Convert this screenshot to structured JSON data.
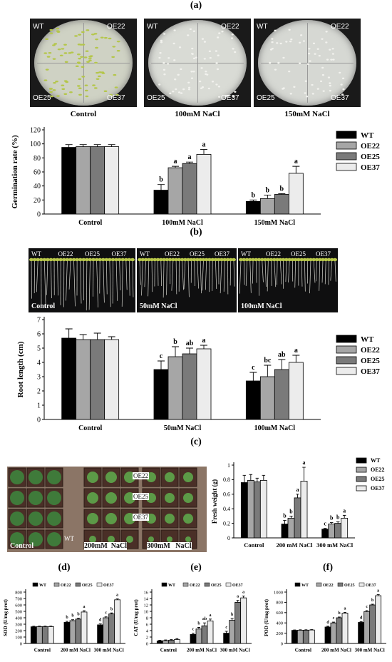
{
  "panels": {
    "a": "(a)",
    "b": "(b)",
    "c": "(c)",
    "d": "(d)",
    "e": "(e)",
    "f": "(f)"
  },
  "plates": [
    {
      "condition": "Control",
      "labels": [
        "WT",
        "OE22",
        "OE25",
        "OE37"
      ],
      "color": "#cfd2c4"
    },
    {
      "condition": "100mM NaCl",
      "labels": [
        "WT",
        "OE22",
        "OE25",
        "OE37"
      ],
      "color": "#d9dbd5"
    },
    {
      "condition": "150mM NaCl",
      "labels": [
        "WT",
        "OE22",
        "OE25",
        "OE37"
      ],
      "color": "#d6d8d3"
    }
  ],
  "root_photos": [
    {
      "condition": "Control",
      "labels": [
        "WT",
        "OE22",
        "OE25",
        "OE37"
      ]
    },
    {
      "condition": "50mM NaCl",
      "labels": [
        "WT",
        "OE22",
        "OE25",
        "OE37"
      ]
    },
    {
      "condition": "100mM NaCl",
      "labels": [
        "WT",
        "OE22",
        "OE25",
        "OE37"
      ]
    }
  ],
  "rosette_photo": {
    "row_labels": [
      "OE22",
      "OE25",
      "OE37",
      "WT"
    ],
    "conditions": [
      "Control",
      "200mM  NaCl",
      "300mM   NaCl"
    ]
  },
  "colors": {
    "WT": "#000000",
    "OE22": "#a6a6a6",
    "OE25": "#7a7a7a",
    "OE37": "#ececec"
  },
  "chart_data": [
    {
      "id": "germination",
      "type": "bar",
      "ylabel": "Germination rate (%)",
      "ylim": [
        0,
        120
      ],
      "yticks": [
        0,
        20,
        40,
        60,
        80,
        100,
        120
      ],
      "categories": [
        "Control",
        "100mM NaCl",
        "150mM NaCl"
      ],
      "series": [
        {
          "name": "WT",
          "values": [
            95,
            34,
            18
          ],
          "errors": [
            4,
            8,
            2
          ],
          "letters": [
            "",
            "b",
            "b"
          ]
        },
        {
          "name": "OE22",
          "values": [
            96,
            66,
            22
          ],
          "errors": [
            3,
            2,
            5
          ],
          "letters": [
            "",
            "a",
            "b"
          ]
        },
        {
          "name": "OE25",
          "values": [
            96,
            72,
            28
          ],
          "errors": [
            3,
            2,
            1
          ],
          "letters": [
            "",
            "a",
            "b"
          ]
        },
        {
          "name": "OE37",
          "values": [
            96,
            85,
            58
          ],
          "errors": [
            3,
            7,
            10
          ],
          "letters": [
            "",
            "a",
            "a"
          ]
        }
      ]
    },
    {
      "id": "rootlength",
      "type": "bar",
      "ylabel": "Root length (cm)",
      "ylim": [
        0,
        7
      ],
      "yticks": [
        0,
        1,
        2,
        3,
        4,
        5,
        6,
        7
      ],
      "categories": [
        "Control",
        "50mM NaCl",
        "100mM NaCl"
      ],
      "series": [
        {
          "name": "WT",
          "values": [
            5.7,
            3.5,
            2.7
          ],
          "errors": [
            0.65,
            0.6,
            0.6
          ],
          "letters": [
            "",
            "c",
            "c"
          ]
        },
        {
          "name": "OE22",
          "values": [
            5.6,
            4.4,
            3.0
          ],
          "errors": [
            0.35,
            0.7,
            0.8
          ],
          "letters": [
            "",
            "b",
            "bc"
          ]
        },
        {
          "name": "OE25",
          "values": [
            5.6,
            4.6,
            3.5
          ],
          "errors": [
            0.45,
            0.4,
            0.7
          ],
          "letters": [
            "",
            "ab",
            "ab"
          ]
        },
        {
          "name": "OE37",
          "values": [
            5.6,
            4.95,
            4.0
          ],
          "errors": [
            0.2,
            0.25,
            0.5
          ],
          "letters": [
            "",
            "a",
            "a"
          ]
        }
      ]
    },
    {
      "id": "freshweight",
      "type": "bar",
      "ylabel": "Fresh weight (g)",
      "ylim": [
        0,
        1.0
      ],
      "yticks": [
        0,
        0.2,
        0.4,
        0.6,
        0.8,
        1.0
      ],
      "categories": [
        "Control",
        "200 mM NaCl",
        "300 mM NaCl"
      ],
      "series": [
        {
          "name": "WT",
          "values": [
            0.76,
            0.19,
            0.12
          ],
          "errors": [
            0.1,
            0.05,
            0.01
          ],
          "letters": [
            "",
            "b",
            "c"
          ]
        },
        {
          "name": "OE22",
          "values": [
            0.79,
            0.27,
            0.19
          ],
          "errors": [
            0.08,
            0.03,
            0.02
          ],
          "letters": [
            "",
            "b",
            "b"
          ]
        },
        {
          "name": "OE25",
          "values": [
            0.77,
            0.55,
            0.2
          ],
          "errors": [
            0.05,
            0.05,
            0.02
          ],
          "letters": [
            "",
            "a",
            "b"
          ]
        },
        {
          "name": "OE37",
          "values": [
            0.79,
            0.78,
            0.27
          ],
          "errors": [
            0.07,
            0.19,
            0.04
          ],
          "letters": [
            "",
            "a",
            "a"
          ]
        }
      ]
    },
    {
      "id": "sod",
      "type": "bar",
      "ylabel": "SOD  (U/mg prot)",
      "ylim": [
        0,
        800
      ],
      "yticks": [
        0,
        100,
        200,
        300,
        400,
        500,
        600,
        700,
        800
      ],
      "categories": [
        "Control",
        "200 mM NaCl",
        "300 mM NaCl"
      ],
      "series": [
        {
          "name": "WT",
          "values": [
            260,
            330,
            290
          ],
          "errors": [
            8,
            15,
            15
          ],
          "letters": [
            "",
            "b",
            "d"
          ]
        },
        {
          "name": "OE22",
          "values": [
            262,
            355,
            400
          ],
          "errors": [
            8,
            15,
            15
          ],
          "letters": [
            "",
            "b",
            "c"
          ]
        },
        {
          "name": "OE25",
          "values": [
            262,
            380,
            460
          ],
          "errors": [
            8,
            15,
            15
          ],
          "letters": [
            "",
            "b",
            "b"
          ]
        },
        {
          "name": "OE37",
          "values": [
            262,
            490,
            680
          ],
          "errors": [
            8,
            20,
            15
          ],
          "letters": [
            "",
            "a",
            "a"
          ]
        }
      ]
    },
    {
      "id": "cat",
      "type": "bar",
      "ylabel": "CAT  (U/mg prot)",
      "ylim": [
        0,
        16
      ],
      "yticks": [
        0,
        2,
        4,
        6,
        8,
        10,
        12,
        14,
        16
      ],
      "categories": [
        "Control",
        "200 mM NaCl",
        "300 mM NaCl"
      ],
      "series": [
        {
          "name": "WT",
          "values": [
            0.8,
            2.8,
            3.2
          ],
          "errors": [
            0.2,
            0.4,
            0.6
          ],
          "letters": [
            "",
            "c",
            "c"
          ]
        },
        {
          "name": "OE22",
          "values": [
            0.9,
            4.5,
            7.2
          ],
          "errors": [
            0.2,
            0.5,
            0.6
          ],
          "letters": [
            "",
            "b",
            "b"
          ]
        },
        {
          "name": "OE25",
          "values": [
            1.0,
            5.5,
            12.8
          ],
          "errors": [
            0.2,
            0.9,
            0.6
          ],
          "letters": [
            "",
            "ab",
            "a"
          ]
        },
        {
          "name": "OE37",
          "values": [
            1.2,
            7.0,
            14.2
          ],
          "errors": [
            0.3,
            0.6,
            0.6
          ],
          "letters": [
            "",
            "a",
            "a"
          ]
        }
      ]
    },
    {
      "id": "pod",
      "type": "bar",
      "ylabel": "POD  (U/mg prot)",
      "ylim": [
        0,
        1000
      ],
      "yticks": [
        0,
        200,
        400,
        600,
        800,
        1000
      ],
      "categories": [
        "Control",
        "200 mM NaCl",
        "300 mM NaCl"
      ],
      "series": [
        {
          "name": "WT",
          "values": [
            255,
            320,
            410
          ],
          "errors": [
            8,
            15,
            15
          ],
          "letters": [
            "",
            "d",
            "d"
          ]
        },
        {
          "name": "OE22",
          "values": [
            258,
            400,
            620
          ],
          "errors": [
            8,
            15,
            20
          ],
          "letters": [
            "",
            "c",
            "c"
          ]
        },
        {
          "name": "OE25",
          "values": [
            258,
            500,
            750
          ],
          "errors": [
            8,
            15,
            15
          ],
          "letters": [
            "",
            "b",
            "b"
          ]
        },
        {
          "name": "OE37",
          "values": [
            262,
            590,
            930
          ],
          "errors": [
            8,
            15,
            20
          ],
          "letters": [
            "",
            "a",
            "a"
          ]
        }
      ]
    }
  ]
}
